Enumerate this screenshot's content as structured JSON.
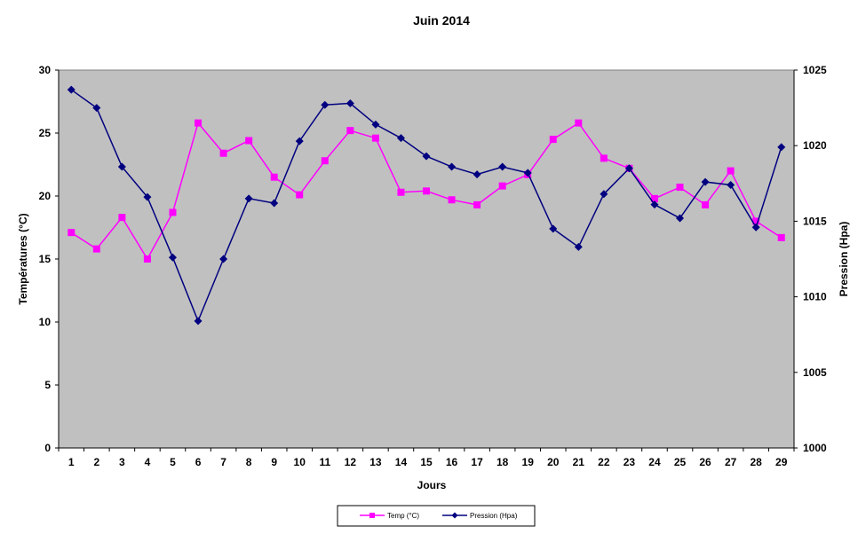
{
  "chart_data": {
    "type": "line",
    "title": "Juin 2014",
    "xlabel": "Jours",
    "ylabel_left": "Températures (°C)",
    "ylabel_right": "Pression (Hpa)",
    "x": [
      1,
      2,
      3,
      4,
      5,
      6,
      7,
      8,
      9,
      10,
      11,
      12,
      13,
      14,
      15,
      16,
      17,
      18,
      19,
      20,
      21,
      22,
      23,
      24,
      25,
      26,
      27,
      28,
      29
    ],
    "ylim_left": [
      0,
      30
    ],
    "yticks_left": [
      0,
      5,
      10,
      15,
      20,
      25,
      30
    ],
    "ylim_right": [
      1000,
      1025
    ],
    "yticks_right": [
      1000,
      1005,
      1010,
      1015,
      1020,
      1025
    ],
    "plot_background": "#C0C0C0",
    "grid": false,
    "legend_position": "bottom",
    "series": [
      {
        "name": "Temp (°C)",
        "axis": "left",
        "color": "#FF00FF",
        "marker": "square",
        "values": [
          17.1,
          15.8,
          18.3,
          15.0,
          18.7,
          25.8,
          23.4,
          24.4,
          21.5,
          20.1,
          22.8,
          25.2,
          24.6,
          20.3,
          20.4,
          19.7,
          19.3,
          20.8,
          21.7,
          24.5,
          25.8,
          23.0,
          22.2,
          19.8,
          20.7,
          19.3,
          22.0,
          18.0,
          16.7
        ]
      },
      {
        "name": "Pression (Hpa)",
        "axis": "right",
        "color": "#000080",
        "marker": "diamond",
        "values": [
          1023.7,
          1022.5,
          1018.6,
          1016.6,
          1012.6,
          1008.4,
          1012.5,
          1016.5,
          1016.2,
          1020.3,
          1022.7,
          1022.8,
          1021.4,
          1020.5,
          1019.3,
          1018.6,
          1018.1,
          1018.6,
          1018.2,
          1014.5,
          1013.3,
          1016.8,
          1018.5,
          1016.1,
          1015.2,
          1017.6,
          1017.4,
          1014.6,
          1019.9
        ]
      }
    ]
  }
}
